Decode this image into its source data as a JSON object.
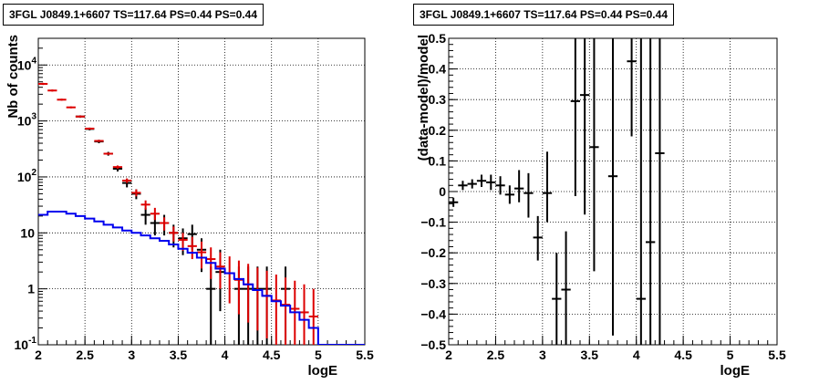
{
  "chart_data": [
    {
      "type": "step-histogram",
      "title": "3FGL J0849.1+6607 TS=117.64 PS=0.44 PS=0.44",
      "xlabel": "logE",
      "ylabel": "Nb of counts",
      "xlim": [
        2,
        5.5
      ],
      "ylim": [
        0.1,
        30000
      ],
      "yscale": "log",
      "grid": true,
      "x_ticks": [
        "2",
        "2.5",
        "3",
        "3.5",
        "4",
        "4.5",
        "5",
        "5.5"
      ],
      "y_ticks": [
        {
          "value": 0.1,
          "base": "10",
          "exp": "-1"
        },
        {
          "value": 1,
          "base": "1",
          "exp": ""
        },
        {
          "value": 10,
          "base": "10",
          "exp": ""
        },
        {
          "value": 100,
          "base": "10",
          "exp": "2"
        },
        {
          "value": 1000,
          "base": "10",
          "exp": "3"
        },
        {
          "value": 10000,
          "base": "10",
          "exp": "4"
        }
      ],
      "series": [
        {
          "role": "data",
          "color": "#000000",
          "x": [
            2.45,
            2.55,
            2.65,
            2.75,
            2.85,
            2.95,
            3.05,
            3.15,
            3.25,
            3.35,
            3.45,
            3.55,
            3.65,
            3.75,
            3.85,
            3.95,
            4.15,
            4.25,
            4.35,
            4.45,
            4.65
          ],
          "y": [
            1200,
            720,
            430,
            260,
            140,
            78,
            50,
            21,
            15,
            15,
            10,
            8,
            9.5,
            5,
            1,
            2,
            1,
            1,
            1,
            1,
            1
          ],
          "lo": [
            1140,
            680,
            400,
            240,
            125,
            65,
            40,
            14,
            9,
            9,
            5.5,
            4,
            5,
            2,
            0.1,
            0.4,
            0.1,
            0.1,
            0.1,
            0.1,
            0.1
          ],
          "hi": [
            1260,
            760,
            460,
            280,
            155,
            92,
            60,
            28,
            21,
            21,
            14,
            12,
            14,
            8,
            2.5,
            5,
            2.5,
            2.5,
            2.5,
            2.5,
            2.5
          ]
        },
        {
          "role": "model",
          "color": "#dd0000",
          "x": [
            2.05,
            2.15,
            2.25,
            2.35,
            2.45,
            2.55,
            2.65,
            2.75,
            2.85,
            2.95,
            3.05,
            3.15,
            3.25,
            3.35,
            3.45,
            3.55,
            3.65,
            3.75,
            3.85,
            3.95,
            4.05,
            4.15,
            4.25,
            4.35,
            4.45,
            4.55,
            4.65,
            4.75,
            4.85,
            4.95
          ],
          "y": [
            4600,
            3500,
            2400,
            1750,
            1200,
            730,
            440,
            260,
            150,
            86,
            52,
            32,
            22,
            15,
            10,
            7.5,
            5.8,
            4.5,
            3.4,
            2.5,
            1.9,
            1.45,
            1.2,
            0.95,
            0.75,
            0.62,
            0.52,
            0.44,
            0.38,
            0.32
          ],
          "lo": [
            4400,
            3350,
            2300,
            1680,
            1150,
            700,
            420,
            248,
            140,
            78,
            45,
            26,
            17,
            11,
            7,
            4.8,
            3.4,
            2.3,
            1.5,
            1.0,
            0.55,
            0.35,
            0.25,
            0.18,
            0.13,
            0.1,
            0.1,
            0.1,
            0.1,
            0.1
          ],
          "hi": [
            4800,
            3650,
            2500,
            1820,
            1250,
            760,
            460,
            272,
            160,
            94,
            60,
            38,
            28,
            19,
            13,
            10,
            8.5,
            7,
            5.5,
            4.5,
            3.8,
            3.2,
            2.8,
            2.4,
            2.1,
            1.8,
            1.6,
            1.4,
            1.2,
            1.0
          ]
        },
        {
          "role": "model-curve",
          "color": "#0000ee",
          "edges": [
            2.0,
            2.1,
            2.2,
            2.3,
            2.4,
            2.5,
            2.6,
            2.7,
            2.8,
            2.9,
            3.0,
            3.1,
            3.2,
            3.3,
            3.4,
            3.5,
            3.6,
            3.7,
            3.8,
            3.9,
            4.0,
            4.1,
            4.2,
            4.3,
            4.4,
            4.5,
            4.6,
            4.7,
            4.8,
            4.9,
            5.0,
            5.1,
            5.2,
            5.3,
            5.4,
            5.5
          ],
          "values": [
            21,
            24,
            24,
            22,
            20,
            18,
            16,
            14,
            12.5,
            11,
            10,
            9,
            8,
            7.2,
            6.2,
            5.2,
            4.4,
            3.6,
            2.9,
            2.3,
            1.9,
            1.5,
            1.2,
            0.95,
            0.75,
            0.6,
            0.5,
            0.38,
            0.28,
            0.2,
            0.1,
            0.1,
            0.1,
            0.1,
            0.1
          ]
        }
      ]
    },
    {
      "type": "scatter-errorbar",
      "title": "3FGL J0849.1+6607 TS=117.64 PS=0.44 PS=0.44",
      "xlabel": "logE",
      "ylabel": "(data-model)/model",
      "xlim": [
        2,
        5.5
      ],
      "ylim": [
        -0.5,
        0.5
      ],
      "grid": true,
      "x_ticks": [
        "2",
        "2.5",
        "3",
        "3.5",
        "4",
        "4.5",
        "5",
        "5.5"
      ],
      "y_ticks": [
        "−0.5",
        "−0.4",
        "−0.3",
        "−0.2",
        "−0.1",
        "0",
        "0.1",
        "0.2",
        "0.3",
        "0.4",
        "0.5"
      ],
      "y_tick_values": [
        -0.5,
        -0.4,
        -0.3,
        -0.2,
        -0.1,
        0,
        0.1,
        0.2,
        0.3,
        0.4,
        0.5
      ],
      "series": [
        {
          "color": "#000000",
          "x": [
            2.05,
            2.15,
            2.25,
            2.35,
            2.45,
            2.55,
            2.65,
            2.75,
            2.85,
            2.95,
            3.05,
            3.15,
            3.25,
            3.35,
            3.45,
            3.55,
            3.75,
            3.95,
            4.05,
            4.15,
            4.25
          ],
          "y": [
            -0.035,
            0.02,
            0.025,
            0.035,
            0.03,
            0.02,
            -0.01,
            0.01,
            -0.005,
            -0.15,
            -0.005,
            -0.35,
            -0.32,
            0.295,
            0.315,
            0.145,
            0.05,
            0.425,
            -0.35,
            -0.165,
            0.125
          ],
          "lo": [
            -0.05,
            0.005,
            0.01,
            0.015,
            0.005,
            -0.01,
            -0.04,
            -0.035,
            -0.085,
            -0.225,
            -0.1,
            -0.5,
            -0.5,
            -0.015,
            -0.075,
            -0.26,
            -0.47,
            0.18,
            -0.5,
            -0.5,
            -0.5
          ],
          "hi": [
            -0.02,
            0.035,
            0.04,
            0.055,
            0.055,
            0.05,
            0.02,
            0.07,
            0.06,
            -0.08,
            0.13,
            -0.2,
            -0.13,
            0.5,
            0.5,
            0.5,
            0.5,
            0.5,
            0.5,
            0.5,
            0.5
          ]
        }
      ]
    }
  ]
}
